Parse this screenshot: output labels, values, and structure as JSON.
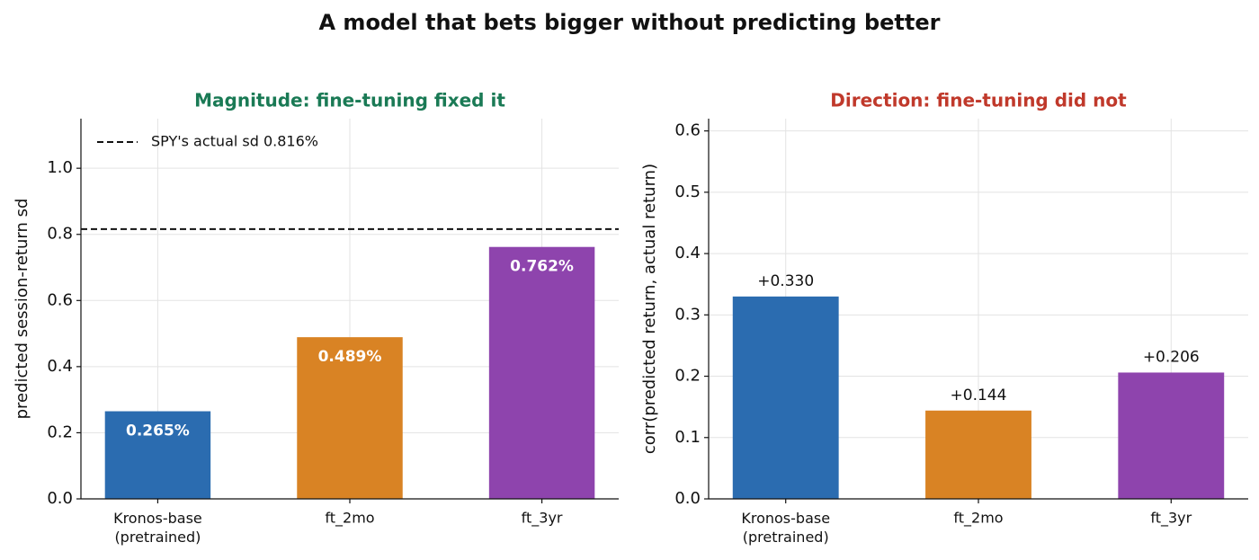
{
  "title": "A model that bets bigger without predicting better",
  "chart_data": [
    {
      "type": "bar",
      "title": "Magnitude: fine-tuning fixed it",
      "title_color": "#1a7a55",
      "ylabel": "predicted session-return sd",
      "categories": [
        "Kronos-base\n(pretrained)",
        "ft_2mo",
        "ft_3yr"
      ],
      "values": [
        0.265,
        0.489,
        0.762
      ],
      "value_labels": [
        "0.265%",
        "0.489%",
        "0.762%"
      ],
      "label_position": "inside",
      "colors": [
        "#2b6cb0",
        "#d98324",
        "#8e44ad"
      ],
      "ylim": [
        0,
        1.15
      ],
      "yticks": [
        {
          "value": 0,
          "label": "0.0"
        },
        0.2,
        0.4,
        0.6,
        0.8,
        {
          "value": 1,
          "label": "1.0"
        }
      ],
      "grid": true,
      "hline": {
        "value": 0.816,
        "label": "SPY's actual sd  0.816%"
      },
      "legend": "upper left"
    },
    {
      "type": "bar",
      "title": "Direction: fine-tuning did not",
      "title_color": "#c0392b",
      "ylabel": "corr(predicted return, actual return)",
      "categories": [
        "Kronos-base\n(pretrained)",
        "ft_2mo",
        "ft_3yr"
      ],
      "values": [
        0.33,
        0.144,
        0.206
      ],
      "value_labels": [
        "+0.330",
        "+0.144",
        "+0.206"
      ],
      "label_position": "above",
      "colors": [
        "#2b6cb0",
        "#d98324",
        "#8e44ad"
      ],
      "ylim": [
        0,
        0.62
      ],
      "yticks": [
        {
          "value": 0,
          "label": "0.0"
        },
        0.1,
        0.2,
        0.3,
        0.4,
        0.5,
        0.6
      ],
      "grid": true
    }
  ]
}
